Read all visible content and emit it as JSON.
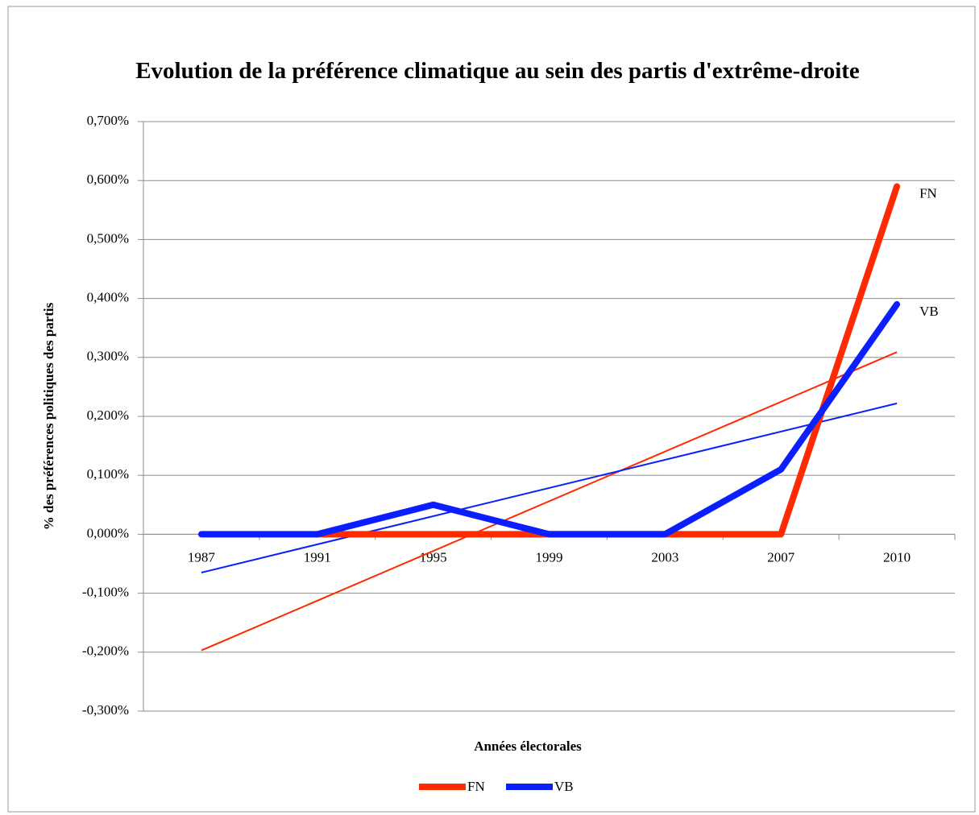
{
  "chart_data": {
    "type": "line",
    "title": "Evolution de la préférence climatique au sein des partis d'extrême-droite",
    "x_label": "Années électorales",
    "y_label": "% des préférences politiques des partis",
    "categories": [
      "1987",
      "1991",
      "1995",
      "1999",
      "2003",
      "2007",
      "2010"
    ],
    "series": [
      {
        "name": "FN",
        "color": "#ff2a00",
        "values": [
          null,
          0,
          0,
          0,
          0,
          0,
          0.59
        ],
        "trendline": [
          -0.197,
          0.309
        ]
      },
      {
        "name": "VB",
        "color": "#0a1eff",
        "values": [
          0,
          0,
          0.05,
          0,
          0,
          0.11,
          0.39
        ],
        "trendline": [
          -0.065,
          0.222
        ]
      }
    ],
    "ylim": [
      -0.3,
      0.7
    ],
    "yticks": [
      {
        "value": 0.7,
        "label": "0,700%"
      },
      {
        "value": 0.6,
        "label": "0,600%"
      },
      {
        "value": 0.5,
        "label": "0,500%"
      },
      {
        "value": 0.4,
        "label": "0,400%"
      },
      {
        "value": 0.3,
        "label": "0,300%"
      },
      {
        "value": 0.2,
        "label": "0,200%"
      },
      {
        "value": 0.1,
        "label": "0,100%"
      },
      {
        "value": 0,
        "label": "0,000%"
      },
      {
        "value": -0.1,
        "label": "-0,100%"
      },
      {
        "value": -0.2,
        "label": "-0,200%"
      },
      {
        "value": -0.3,
        "label": "-0,300%"
      }
    ],
    "grid": true,
    "legend": "bottom"
  }
}
